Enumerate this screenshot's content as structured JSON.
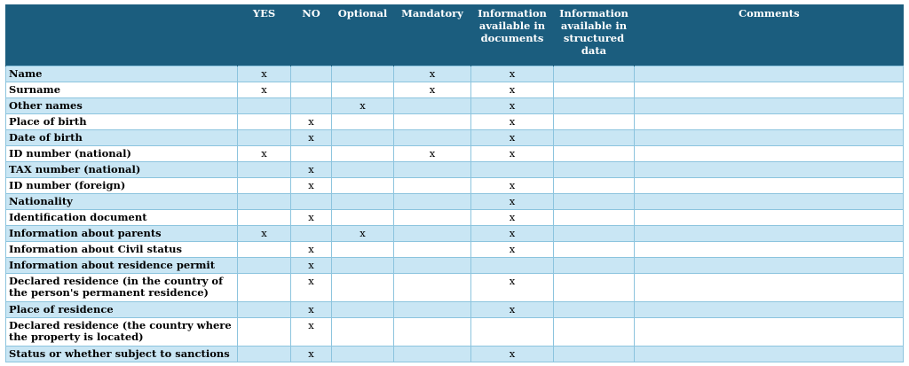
{
  "headers": [
    "",
    "YES",
    "NO",
    "Optional",
    "Mandatory",
    "Information available in documents",
    "Information available in structured data",
    "Comments"
  ],
  "rows": [
    {
      "label": "Name",
      "marks": [
        "x",
        "",
        "",
        "x",
        "x",
        "",
        ""
      ]
    },
    {
      "label": "Surname",
      "marks": [
        "x",
        "",
        "",
        "x",
        "x",
        "",
        ""
      ]
    },
    {
      "label": "Other names",
      "marks": [
        "",
        "",
        "x",
        "",
        "x",
        "",
        ""
      ]
    },
    {
      "label": "Place of birth",
      "marks": [
        "",
        "x",
        "",
        "",
        "x",
        "",
        ""
      ]
    },
    {
      "label": "Date of birth",
      "marks": [
        "",
        "x",
        "",
        "",
        "x",
        "",
        ""
      ]
    },
    {
      "label": "ID number (national)",
      "marks": [
        "x",
        "",
        "",
        "x",
        "x",
        "",
        ""
      ]
    },
    {
      "label": "TAX number (national)",
      "marks": [
        "",
        "x",
        "",
        "",
        "",
        "",
        ""
      ]
    },
    {
      "label": "ID number (foreign)",
      "marks": [
        "",
        "x",
        "",
        "",
        "x",
        "",
        ""
      ]
    },
    {
      "label": "Nationality",
      "marks": [
        "",
        "",
        "",
        "",
        "x",
        "",
        ""
      ]
    },
    {
      "label": "Identification document",
      "marks": [
        "",
        "x",
        "",
        "",
        "x",
        "",
        ""
      ]
    },
    {
      "label": "Information about parents",
      "marks": [
        "x",
        "",
        "x",
        "",
        "x",
        "",
        ""
      ]
    },
    {
      "label": "Information about Civil status",
      "marks": [
        "",
        "x",
        "",
        "",
        "x",
        "",
        ""
      ]
    },
    {
      "label": "Information about residence permit",
      "marks": [
        "",
        "x",
        "",
        "",
        "",
        "",
        ""
      ]
    },
    {
      "label": "Declared residence (in the country of the person's permanent residence)",
      "marks": [
        "",
        "x",
        "",
        "",
        "x",
        "",
        ""
      ]
    },
    {
      "label": "Place of residence",
      "marks": [
        "",
        "x",
        "",
        "",
        "x",
        "",
        ""
      ]
    },
    {
      "label": "Declared residence (the country where the property is located)",
      "marks": [
        "",
        "x",
        "",
        "",
        "",
        "",
        ""
      ]
    },
    {
      "label": "Status or whether subject to sanctions",
      "marks": [
        "",
        "x",
        "",
        "",
        "x",
        "",
        ""
      ]
    }
  ]
}
